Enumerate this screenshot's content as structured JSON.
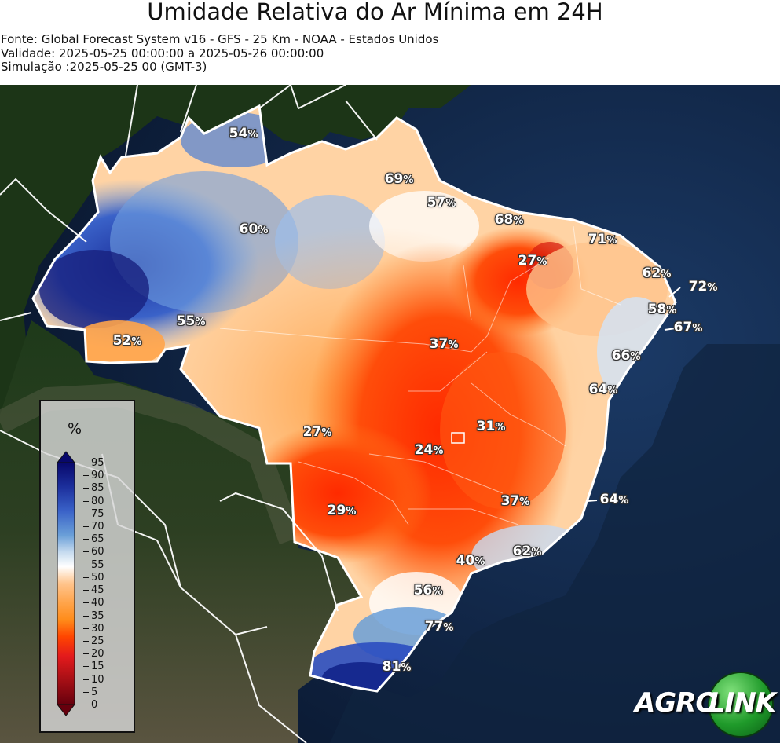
{
  "header": {
    "title": "Umidade Relativa do Ar Mínima em 24H",
    "source": "Fonte: Global Forecast System v16 - GFS - 25 Km - NOAA - Estados Unidos",
    "validity": "Validade: 2025-05-25 00:00:00 a 2025-05-26 00:00:00",
    "simulation": "Simulação :2025-05-25 00 (GMT-3)"
  },
  "legend": {
    "unit": "%",
    "ticks": [
      "95",
      "90",
      "85",
      "80",
      "75",
      "70",
      "65",
      "60",
      "55",
      "50",
      "45",
      "40",
      "35",
      "30",
      "25",
      "20",
      "15",
      "10",
      "5",
      "0"
    ],
    "colors": {
      "0": "#67000d",
      "10": "#a50f15",
      "20": "#e31a1c",
      "30": "#ff4500",
      "40": "#ff8c1a",
      "50": "#ffc48c",
      "55": "#ffffff",
      "65": "#c6dbef",
      "75": "#6a9fd8",
      "85": "#2a5cc7",
      "95": "#08086b"
    }
  },
  "labels": [
    {
      "value": "54",
      "unit": "%"
    },
    {
      "value": "69",
      "unit": "%"
    },
    {
      "value": "57",
      "unit": "%"
    },
    {
      "value": "68",
      "unit": "%"
    },
    {
      "value": "60",
      "unit": "%"
    },
    {
      "value": "71",
      "unit": "%"
    },
    {
      "value": "27",
      "unit": "%"
    },
    {
      "value": "62",
      "unit": "%"
    },
    {
      "value": "72",
      "unit": "%"
    },
    {
      "value": "58",
      "unit": "%"
    },
    {
      "value": "55",
      "unit": "%"
    },
    {
      "value": "52",
      "unit": "%"
    },
    {
      "value": "67",
      "unit": "%"
    },
    {
      "value": "37",
      "unit": "%"
    },
    {
      "value": "66",
      "unit": "%"
    },
    {
      "value": "64",
      "unit": "%"
    },
    {
      "value": "27",
      "unit": "%"
    },
    {
      "value": "31",
      "unit": "%"
    },
    {
      "value": "24",
      "unit": "%"
    },
    {
      "value": "37",
      "unit": "%"
    },
    {
      "value": "64",
      "unit": "%"
    },
    {
      "value": "29",
      "unit": "%"
    },
    {
      "value": "62",
      "unit": "%"
    },
    {
      "value": "40",
      "unit": "%"
    },
    {
      "value": "56",
      "unit": "%"
    },
    {
      "value": "77",
      "unit": "%"
    },
    {
      "value": "81",
      "unit": "%"
    }
  ],
  "logo": {
    "part1": "AGRO",
    "part2": "LINK"
  }
}
